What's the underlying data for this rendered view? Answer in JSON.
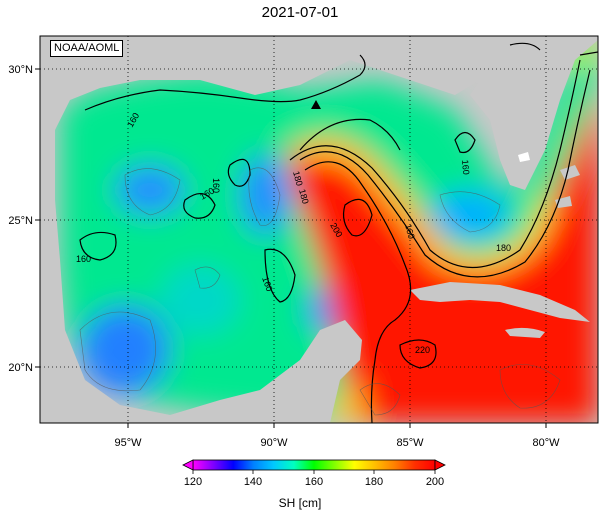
{
  "title": "2021-07-01",
  "source_label": "NOAA/AOML",
  "map": {
    "lon_ticks": [
      "95°W",
      "90°W",
      "85°W",
      "80°W"
    ],
    "lat_ticks": [
      "30°N",
      "25°N",
      "20°N"
    ],
    "colors": {
      "land": "#c8c8c8",
      "background": "#ffffff"
    }
  },
  "contour_labels": [
    "160",
    "160",
    "160",
    "160",
    "160",
    "160",
    "180",
    "180",
    "180",
    "200",
    "220",
    "160"
  ],
  "colorbar": {
    "ticks": [
      "120",
      "140",
      "160",
      "180",
      "200"
    ],
    "units": "SH [cm]",
    "stops": [
      "#ff00ff",
      "#8000ff",
      "#0000ff",
      "#0080ff",
      "#00c8ff",
      "#00ffc0",
      "#00ff00",
      "#80ff00",
      "#ffff00",
      "#ffc000",
      "#ff8000",
      "#ff3000",
      "#ff0000"
    ]
  }
}
